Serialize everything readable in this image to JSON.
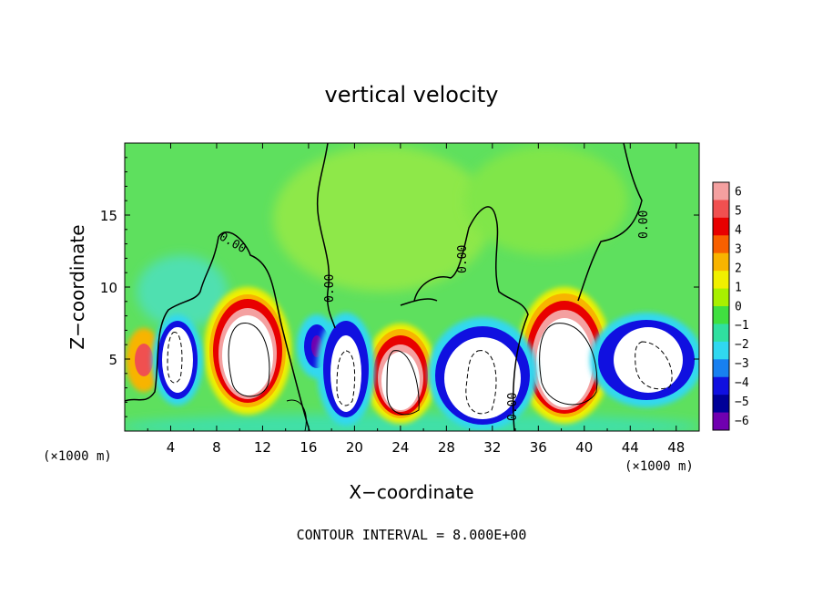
{
  "chart_data": {
    "type": "heatmap",
    "title": "vertical velocity",
    "xlabel": "X−coordinate",
    "ylabel": "Z−coordinate",
    "x_unit_left": "(×1000 m)",
    "x_unit_right": "(×1000 m)",
    "footer": "CONTOUR INTERVAL = 8.000E+00",
    "xlim": [
      0,
      50
    ],
    "ylim": [
      0,
      20
    ],
    "x_ticks": [
      "4",
      "8",
      "12",
      "16",
      "20",
      "24",
      "28",
      "32",
      "36",
      "40",
      "44",
      "48"
    ],
    "y_ticks": [
      "5",
      "10",
      "15"
    ],
    "colorbar": {
      "labels": [
        "6",
        "5",
        "4",
        "3",
        "2",
        "1",
        "0",
        "−1",
        "−2",
        "−3",
        "−4",
        "−5",
        "−6"
      ],
      "colors": [
        "#f4a0a0",
        "#f05050",
        "#e80000",
        "#f86000",
        "#f8b400",
        "#f0f000",
        "#a8f000",
        "#40e040",
        "#30e0a0",
        "#30d8f0",
        "#1880f0",
        "#1010e0",
        "#000098",
        "#7000b0"
      ]
    },
    "contour_labels": [
      "0.00",
      "0.00",
      "0.00",
      "0.00",
      "0.00"
    ],
    "cells": [
      {
        "x": 1.5,
        "z": 5.0,
        "value": 4
      },
      {
        "x": 5.0,
        "z": 5.5,
        "value": -6
      },
      {
        "x": 10.5,
        "z": 5.5,
        "value": 6
      },
      {
        "x": 17.5,
        "z": 5.5,
        "value": -4
      },
      {
        "x": 19.5,
        "z": 4.0,
        "value": -6
      },
      {
        "x": 23.5,
        "z": 3.5,
        "value": 6
      },
      {
        "x": 31.0,
        "z": 3.5,
        "value": -6
      },
      {
        "x": 38.0,
        "z": 5.0,
        "value": 6
      },
      {
        "x": 45.5,
        "z": 5.0,
        "value": -6
      }
    ]
  }
}
